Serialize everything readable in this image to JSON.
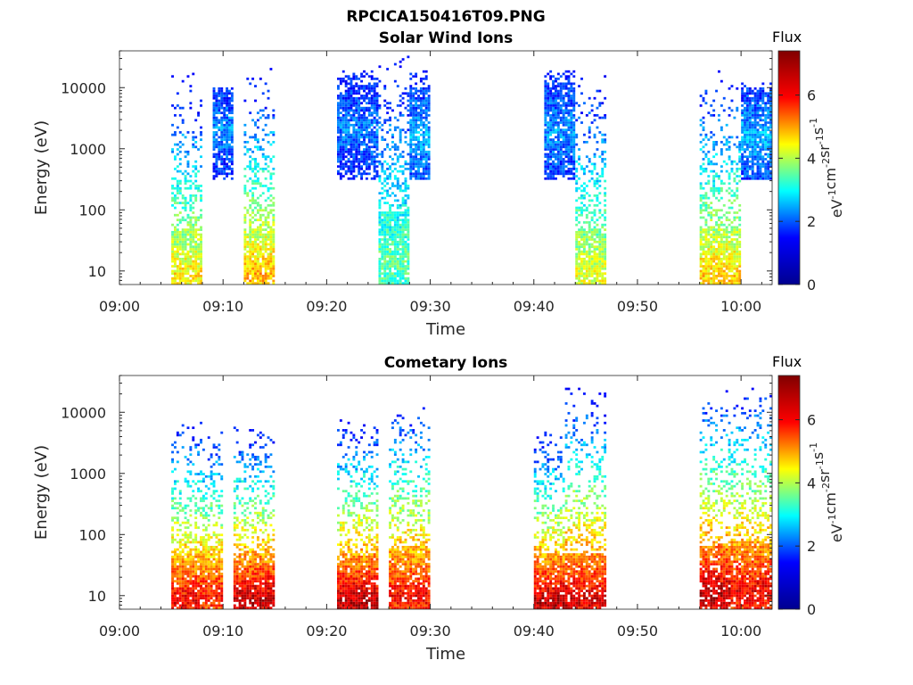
{
  "figure": {
    "title": "RPCICA150416T09.PNG"
  },
  "colorbar": {
    "label": "Flux",
    "unit_parts": [
      "eV",
      "-1",
      "cm",
      "-2",
      "sr",
      "-1",
      "s",
      "-1"
    ],
    "range": [
      0,
      7.4
    ],
    "ticks": [
      "0",
      "2",
      "4",
      "6"
    ],
    "colormap": "jet",
    "colors": [
      "#00008f",
      "#0000ff",
      "#00ffff",
      "#ffff00",
      "#ff0000",
      "#800000"
    ]
  },
  "chart_data": [
    {
      "type": "heatmap",
      "title": "Solar Wind Ions",
      "xlabel": "Time",
      "ylabel": "Energy (eV)",
      "y_scale": "log",
      "xlim": [
        "09:00",
        "10:03"
      ],
      "ylim": [
        6,
        40000
      ],
      "x_ticks": [
        "09:00",
        "09:10",
        "09:20",
        "09:30",
        "09:40",
        "09:50",
        "10:00"
      ],
      "y_ticks": [
        "10",
        "100",
        "1000",
        "10000"
      ],
      "y_tick_values": [
        10,
        100,
        1000,
        10000
      ],
      "bursts": [
        {
          "start": "09:05",
          "end": "09:08",
          "emin": 6,
          "emax": 20000,
          "peak_flux": 4.8,
          "peak_energy": 8
        },
        {
          "start": "09:09",
          "end": "09:11",
          "emin": 300,
          "emax": 10000,
          "peak_flux": 2.0,
          "peak_energy": 2000
        },
        {
          "start": "09:12",
          "end": "09:15",
          "emin": 6,
          "emax": 25000,
          "peak_flux": 5.2,
          "peak_energy": 8
        },
        {
          "start": "09:21",
          "end": "09:25",
          "emin": 300,
          "emax": 20000,
          "peak_flux": 1.8,
          "peak_energy": 2000
        },
        {
          "start": "09:25",
          "end": "09:28",
          "emin": 6,
          "emax": 35000,
          "peak_flux": 3.5,
          "peak_energy": 15
        },
        {
          "start": "09:28",
          "end": "09:30",
          "emin": 300,
          "emax": 20000,
          "peak_flux": 2.2,
          "peak_energy": 1500
        },
        {
          "start": "09:41",
          "end": "09:44",
          "emin": 300,
          "emax": 20000,
          "peak_flux": 2.0,
          "peak_energy": 2000
        },
        {
          "start": "09:44",
          "end": "09:47",
          "emin": 6,
          "emax": 25000,
          "peak_flux": 4.5,
          "peak_energy": 8
        },
        {
          "start": "09:56",
          "end": "10:00",
          "emin": 6,
          "emax": 25000,
          "peak_flux": 5.0,
          "peak_energy": 8
        },
        {
          "start": "10:00",
          "end": "10:03",
          "emin": 300,
          "emax": 12000,
          "peak_flux": 2.3,
          "peak_energy": 1500
        }
      ]
    },
    {
      "type": "heatmap",
      "title": "Cometary Ions",
      "xlabel": "Time",
      "ylabel": "Energy (eV)",
      "y_scale": "log",
      "xlim": [
        "09:00",
        "10:03"
      ],
      "ylim": [
        6,
        40000
      ],
      "x_ticks": [
        "09:00",
        "09:10",
        "09:20",
        "09:30",
        "09:40",
        "09:50",
        "10:00"
      ],
      "y_ticks": [
        "10",
        "100",
        "1000",
        "10000"
      ],
      "y_tick_values": [
        10,
        100,
        1000,
        10000
      ],
      "bursts": [
        {
          "start": "09:05",
          "end": "09:08",
          "emin": 6,
          "emax": 8000,
          "peak_flux": 6.6,
          "peak_energy": 8
        },
        {
          "start": "09:08",
          "end": "09:10",
          "emin": 6,
          "emax": 5000,
          "peak_flux": 6.4,
          "peak_energy": 10
        },
        {
          "start": "09:11",
          "end": "09:15",
          "emin": 6,
          "emax": 6000,
          "peak_flux": 7.0,
          "peak_energy": 8
        },
        {
          "start": "09:21",
          "end": "09:25",
          "emin": 6,
          "emax": 8000,
          "peak_flux": 7.0,
          "peak_energy": 8
        },
        {
          "start": "09:26",
          "end": "09:30",
          "emin": 6,
          "emax": 15000,
          "peak_flux": 6.5,
          "peak_energy": 10
        },
        {
          "start": "09:40",
          "end": "09:43",
          "emin": 6,
          "emax": 5000,
          "peak_flux": 7.0,
          "peak_energy": 8
        },
        {
          "start": "09:43",
          "end": "09:47",
          "emin": 6,
          "emax": 25000,
          "peak_flux": 6.8,
          "peak_energy": 8
        },
        {
          "start": "09:56",
          "end": "09:59",
          "emin": 6,
          "emax": 25000,
          "peak_flux": 7.0,
          "peak_energy": 10
        },
        {
          "start": "09:59",
          "end": "10:03",
          "emin": 6,
          "emax": 25000,
          "peak_flux": 6.6,
          "peak_energy": 12
        }
      ]
    }
  ]
}
